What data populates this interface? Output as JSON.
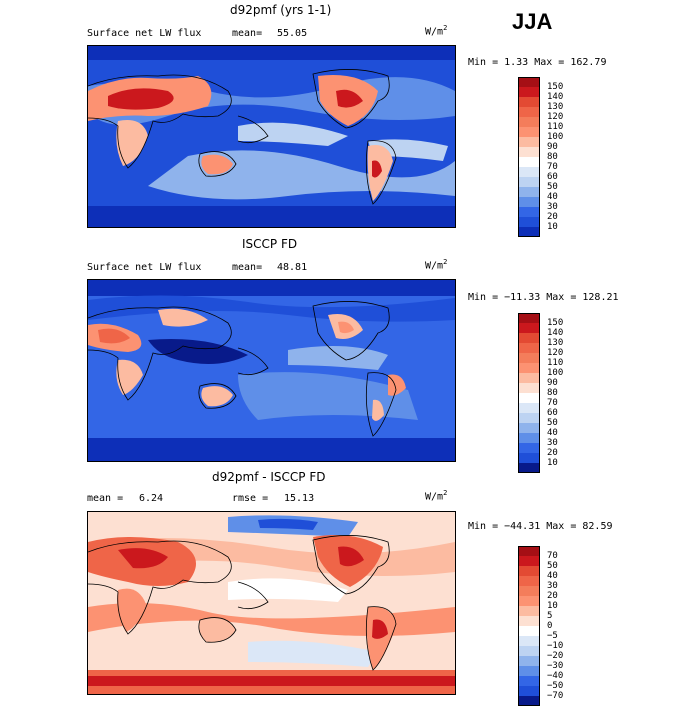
{
  "season": "JJA",
  "units": "W/m",
  "units_exp": "2",
  "panels": [
    {
      "title": "d92pmf (yrs 1-1)",
      "left_label": "Surface net LW flux",
      "mean_label": "mean=",
      "mean_value": "55.05",
      "minmax": "Min =    1.33 Max = 162.79",
      "colorbar_labels": [
        "150",
        "140",
        "130",
        "120",
        "110",
        "100",
        "90",
        "80",
        "70",
        "60",
        "50",
        "40",
        "30",
        "20",
        "10"
      ],
      "colorbar_colors": [
        "#a50f15",
        "#cb181d",
        "#e34a33",
        "#ef6548",
        "#f47d5b",
        "#fc9272",
        "#fcbba1",
        "#fde0d2",
        "#ffffff",
        "#dbe7f7",
        "#bdd3f2",
        "#8fb3ec",
        "#5f8fe8",
        "#3366e6",
        "#1f4fd8",
        "#0d2fb8",
        "#081a8a"
      ]
    },
    {
      "title": "ISCCP FD",
      "left_label": "Surface net LW flux",
      "mean_label": "mean=",
      "mean_value": "48.81",
      "minmax": "Min = −11.33 Max = 128.21",
      "colorbar_labels": [
        "150",
        "140",
        "130",
        "120",
        "110",
        "100",
        "90",
        "80",
        "70",
        "60",
        "50",
        "40",
        "30",
        "20",
        "10"
      ],
      "colorbar_colors": [
        "#a50f15",
        "#cb181d",
        "#e34a33",
        "#ef6548",
        "#f47d5b",
        "#fc9272",
        "#fcbba1",
        "#fde0d2",
        "#ffffff",
        "#dbe7f7",
        "#bdd3f2",
        "#8fb3ec",
        "#5f8fe8",
        "#3366e6",
        "#1f4fd8",
        "#0d2fb8",
        "#081a8a"
      ]
    },
    {
      "title": "d92pmf - ISCCP FD",
      "left_label": "mean =",
      "mean_label": "rmse =",
      "mean_value": "15.13",
      "left_value": "6.24",
      "minmax": "Min = −44.31 Max =  82.59",
      "colorbar_labels": [
        "70",
        "50",
        "40",
        "30",
        "20",
        "10",
        "5",
        "0",
        "−5",
        "−10",
        "−20",
        "−30",
        "−40",
        "−50",
        "−70"
      ],
      "colorbar_colors": [
        "#a50f15",
        "#cb181d",
        "#e34a33",
        "#ef6548",
        "#f47d5b",
        "#fc9272",
        "#fcbba1",
        "#fde0d2",
        "#ffffff",
        "#dbe7f7",
        "#bdd3f2",
        "#8fb3ec",
        "#5f8fe8",
        "#3366e6",
        "#1f4fd8",
        "#0d2fb8",
        "#081a8a"
      ]
    }
  ]
}
